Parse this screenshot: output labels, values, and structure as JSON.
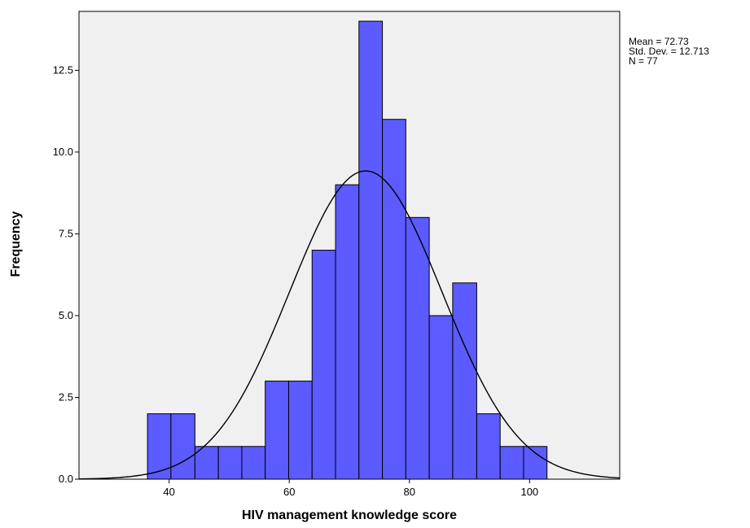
{
  "chart_data": {
    "type": "bar",
    "subtype": "histogram",
    "xlabel": "HIV management knowledge score",
    "ylabel": "Frequency",
    "xlim": [
      25,
      115
    ],
    "ylim": [
      0,
      14.3
    ],
    "xticks": [
      40,
      60,
      80,
      100
    ],
    "yticks": [
      0.0,
      2.5,
      5.0,
      7.5,
      10.0,
      12.5
    ],
    "ytick_labels": [
      "0.0",
      "2.5",
      "5.0",
      "7.5",
      "10.0",
      "12.5"
    ],
    "grid": false,
    "bins": [
      {
        "x0": 36.4,
        "x1": 40.3,
        "count": 2
      },
      {
        "x0": 40.3,
        "x1": 44.3,
        "count": 2
      },
      {
        "x0": 44.3,
        "x1": 48.2,
        "count": 1
      },
      {
        "x0": 48.2,
        "x1": 52.1,
        "count": 1
      },
      {
        "x0": 52.1,
        "x1": 56.0,
        "count": 1
      },
      {
        "x0": 56.0,
        "x1": 59.9,
        "count": 3
      },
      {
        "x0": 59.9,
        "x1": 63.8,
        "count": 3
      },
      {
        "x0": 63.8,
        "x1": 67.7,
        "count": 7
      },
      {
        "x0": 67.7,
        "x1": 71.6,
        "count": 9
      },
      {
        "x0": 71.6,
        "x1": 75.5,
        "count": 14
      },
      {
        "x0": 75.5,
        "x1": 79.4,
        "count": 11
      },
      {
        "x0": 79.4,
        "x1": 83.3,
        "count": 8
      },
      {
        "x0": 83.3,
        "x1": 87.2,
        "count": 5
      },
      {
        "x0": 87.2,
        "x1": 91.2,
        "count": 6
      },
      {
        "x0": 91.2,
        "x1": 95.1,
        "count": 2
      },
      {
        "x0": 95.1,
        "x1": 99.0,
        "count": 1
      },
      {
        "x0": 99.0,
        "x1": 102.9,
        "count": 1
      }
    ],
    "normal_curve": {
      "mean": 72.73,
      "sd": 12.713,
      "n": 77,
      "bin_width": 3.9
    },
    "stats_text": [
      "Mean = 72.73",
      "Std. Dev. = 12.713",
      "N = 77"
    ],
    "stats_placement": "top-right outside plot",
    "colors": {
      "bar_fill": "#5b5bff",
      "bar_stroke": "#000000",
      "plot_bg": "#f0f0f0",
      "curve": "#000000"
    }
  }
}
